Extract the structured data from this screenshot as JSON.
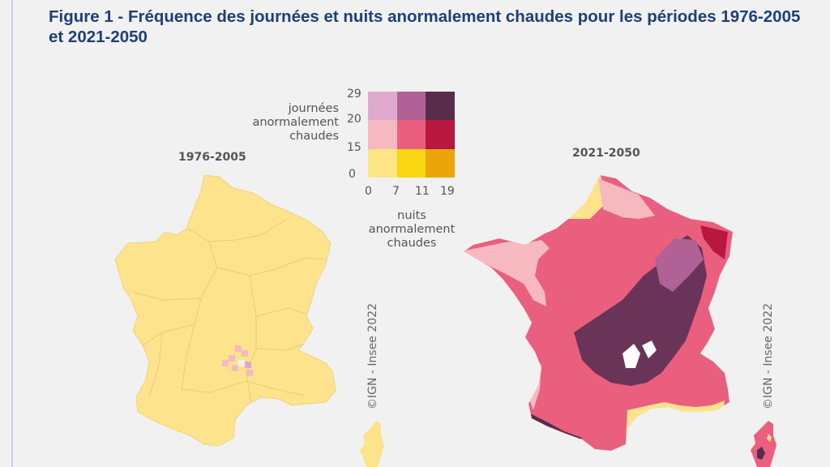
{
  "title": "Figure 1 - Fréquence des journées et nuits anormalement chaudes pour les périodes 1976-2005 et 2021-2050",
  "maps": {
    "left": {
      "label": "1976-2005",
      "credit": "©IGN - Insee 2022"
    },
    "right": {
      "label": "2021-2050",
      "credit": "©IGN - Insee 2022"
    }
  },
  "legend": {
    "y_axis_title": "journées anormalement chaudes",
    "y_ticks": [
      "29",
      "20",
      "15",
      "0"
    ],
    "x_axis_title": "nuits anormalement chaudes",
    "x_ticks": [
      "0",
      "7",
      "11",
      "19"
    ],
    "colors": [
      [
        "#ddaacd",
        "#b06195",
        "#5a2c4c"
      ],
      [
        "#f6b9c0",
        "#ea5f7d",
        "#b8183f"
      ],
      [
        "#fde484",
        "#f9d713",
        "#eba40a"
      ]
    ]
  }
}
